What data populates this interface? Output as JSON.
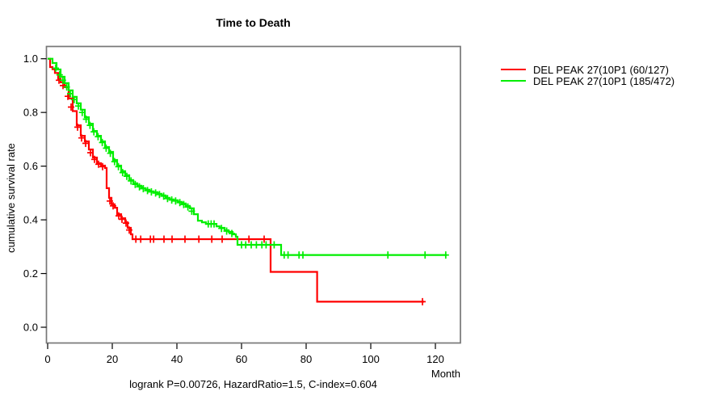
{
  "title": "Time to Death",
  "axes": {
    "y_label": "cumulative survival rate",
    "x_label": "Month",
    "x_ticks": [
      0,
      20,
      40,
      60,
      80,
      100,
      120
    ],
    "y_ticks": [
      "0.0",
      "0.2",
      "0.4",
      "0.6",
      "0.8",
      "1.0"
    ]
  },
  "annotation": "logrank P=0.00726, HazardRatio=1.5, C-index=0.604",
  "chart_data": {
    "type": "line",
    "subtype": "kaplan-meier-step",
    "title": "Time to Death",
    "xlabel": "Month",
    "ylabel": "cumulative survival rate",
    "xlim": [
      0,
      127.75
    ],
    "ylim": [
      0.0,
      1.0
    ],
    "grid": false,
    "legend_position": "right-outside",
    "series": [
      {
        "id": "group-red",
        "name": "DEL PEAK 27(10P1 (60/127)",
        "color": "#ff0000",
        "steps": [
          [
            0,
            1.0
          ],
          [
            0.75,
            0.969
          ],
          [
            1.5,
            0.961
          ],
          [
            2.25,
            0.947
          ],
          [
            3.25,
            0.925
          ],
          [
            4,
            0.912
          ],
          [
            5.25,
            0.894
          ],
          [
            6.5,
            0.852
          ],
          [
            7.75,
            0.805
          ],
          [
            9,
            0.752
          ],
          [
            10.25,
            0.713
          ],
          [
            11.5,
            0.692
          ],
          [
            12.75,
            0.662
          ],
          [
            14,
            0.632
          ],
          [
            15.25,
            0.611
          ],
          [
            16.5,
            0.602
          ],
          [
            17.75,
            0.593
          ],
          [
            18.25,
            0.518
          ],
          [
            19,
            0.482
          ],
          [
            19.75,
            0.458
          ],
          [
            20.75,
            0.445
          ],
          [
            21.5,
            0.421
          ],
          [
            22.75,
            0.406
          ],
          [
            24,
            0.391
          ],
          [
            24.75,
            0.37
          ],
          [
            25.75,
            0.346
          ],
          [
            26.25,
            0.328
          ],
          [
            69,
            0.206
          ],
          [
            83.4,
            0.095
          ],
          [
            116.5,
            0.095
          ]
        ],
        "censors": [
          [
            3.5,
            0.92
          ],
          [
            4.75,
            0.9
          ],
          [
            6.25,
            0.86
          ],
          [
            7.25,
            0.82
          ],
          [
            9.25,
            0.745
          ],
          [
            10.5,
            0.705
          ],
          [
            11.75,
            0.685
          ],
          [
            13.25,
            0.65
          ],
          [
            14.5,
            0.625
          ],
          [
            15.75,
            0.607
          ],
          [
            17,
            0.598
          ],
          [
            19.25,
            0.47
          ],
          [
            20.25,
            0.452
          ],
          [
            22,
            0.415
          ],
          [
            23,
            0.402
          ],
          [
            24.25,
            0.388
          ],
          [
            25.25,
            0.362
          ],
          [
            27.3,
            0.328
          ],
          [
            28.8,
            0.328
          ],
          [
            31.8,
            0.328
          ],
          [
            32.8,
            0.328
          ],
          [
            36,
            0.328
          ],
          [
            38.5,
            0.328
          ],
          [
            42.5,
            0.328
          ],
          [
            46.8,
            0.328
          ],
          [
            50.8,
            0.328
          ],
          [
            54,
            0.328
          ],
          [
            62.3,
            0.328
          ],
          [
            67,
            0.328
          ],
          [
            116,
            0.095
          ]
        ]
      },
      {
        "id": "group-green",
        "name": "DEL PEAK 27(10P1 (185/472)",
        "color": "#00ee00",
        "steps": [
          [
            0,
            1.0
          ],
          [
            1.5,
            0.984
          ],
          [
            2.75,
            0.96
          ],
          [
            4,
            0.933
          ],
          [
            5.25,
            0.909
          ],
          [
            6.5,
            0.882
          ],
          [
            7.75,
            0.858
          ],
          [
            9,
            0.834
          ],
          [
            10.25,
            0.81
          ],
          [
            11.5,
            0.782
          ],
          [
            12.75,
            0.758
          ],
          [
            14,
            0.731
          ],
          [
            15.25,
            0.713
          ],
          [
            16.5,
            0.692
          ],
          [
            17.75,
            0.671
          ],
          [
            19,
            0.653
          ],
          [
            20.25,
            0.623
          ],
          [
            21.5,
            0.602
          ],
          [
            22.75,
            0.581
          ],
          [
            24,
            0.566
          ],
          [
            25.25,
            0.548
          ],
          [
            26.5,
            0.536
          ],
          [
            27.75,
            0.527
          ],
          [
            29,
            0.518
          ],
          [
            30.25,
            0.512
          ],
          [
            31.5,
            0.506
          ],
          [
            32.75,
            0.503
          ],
          [
            34,
            0.497
          ],
          [
            35.25,
            0.491
          ],
          [
            36.5,
            0.482
          ],
          [
            37.75,
            0.476
          ],
          [
            39,
            0.473
          ],
          [
            40.25,
            0.467
          ],
          [
            41.5,
            0.461
          ],
          [
            42.75,
            0.452
          ],
          [
            44,
            0.443
          ],
          [
            45.25,
            0.421
          ],
          [
            46.5,
            0.397
          ],
          [
            47.75,
            0.391
          ],
          [
            49,
            0.385
          ],
          [
            52.25,
            0.376
          ],
          [
            53.25,
            0.37
          ],
          [
            54.75,
            0.361
          ],
          [
            56,
            0.355
          ],
          [
            57.25,
            0.346
          ],
          [
            58.25,
            0.337
          ],
          [
            58.75,
            0.307
          ],
          [
            72.25,
            0.269
          ],
          [
            123.5,
            0.269
          ]
        ],
        "censors": [
          [
            2.5,
            0.965
          ],
          [
            3.7,
            0.94
          ],
          [
            4.7,
            0.92
          ],
          [
            5.9,
            0.895
          ],
          [
            7,
            0.87
          ],
          [
            8.2,
            0.848
          ],
          [
            9.5,
            0.824
          ],
          [
            10.7,
            0.8
          ],
          [
            11.9,
            0.775
          ],
          [
            13.1,
            0.752
          ],
          [
            14.3,
            0.728
          ],
          [
            15.6,
            0.71
          ],
          [
            16.9,
            0.688
          ],
          [
            18.1,
            0.667
          ],
          [
            19.4,
            0.648
          ],
          [
            20.7,
            0.617
          ],
          [
            21.9,
            0.598
          ],
          [
            23.2,
            0.576
          ],
          [
            24.5,
            0.562
          ],
          [
            25.8,
            0.545
          ],
          [
            27.1,
            0.532
          ],
          [
            28.4,
            0.523
          ],
          [
            29.6,
            0.516
          ],
          [
            30.9,
            0.509
          ],
          [
            32.1,
            0.504
          ],
          [
            33.4,
            0.5
          ],
          [
            34.6,
            0.494
          ],
          [
            35.9,
            0.488
          ],
          [
            37.1,
            0.479
          ],
          [
            38.4,
            0.474
          ],
          [
            39.6,
            0.47
          ],
          [
            40.9,
            0.464
          ],
          [
            42.1,
            0.457
          ],
          [
            43.4,
            0.448
          ],
          [
            44.6,
            0.432
          ],
          [
            49.7,
            0.385
          ],
          [
            50.6,
            0.385
          ],
          [
            51.5,
            0.385
          ],
          [
            53.8,
            0.368
          ],
          [
            55.4,
            0.358
          ],
          [
            57,
            0.349
          ],
          [
            60,
            0.307
          ],
          [
            61.3,
            0.307
          ],
          [
            63,
            0.307
          ],
          [
            64.6,
            0.307
          ],
          [
            66.3,
            0.307
          ],
          [
            67.6,
            0.307
          ],
          [
            70.1,
            0.307
          ],
          [
            73.2,
            0.269
          ],
          [
            74.4,
            0.269
          ],
          [
            77.8,
            0.269
          ],
          [
            79,
            0.269
          ],
          [
            105.3,
            0.269
          ],
          [
            116.8,
            0.269
          ],
          [
            123.2,
            0.269
          ]
        ]
      }
    ]
  }
}
